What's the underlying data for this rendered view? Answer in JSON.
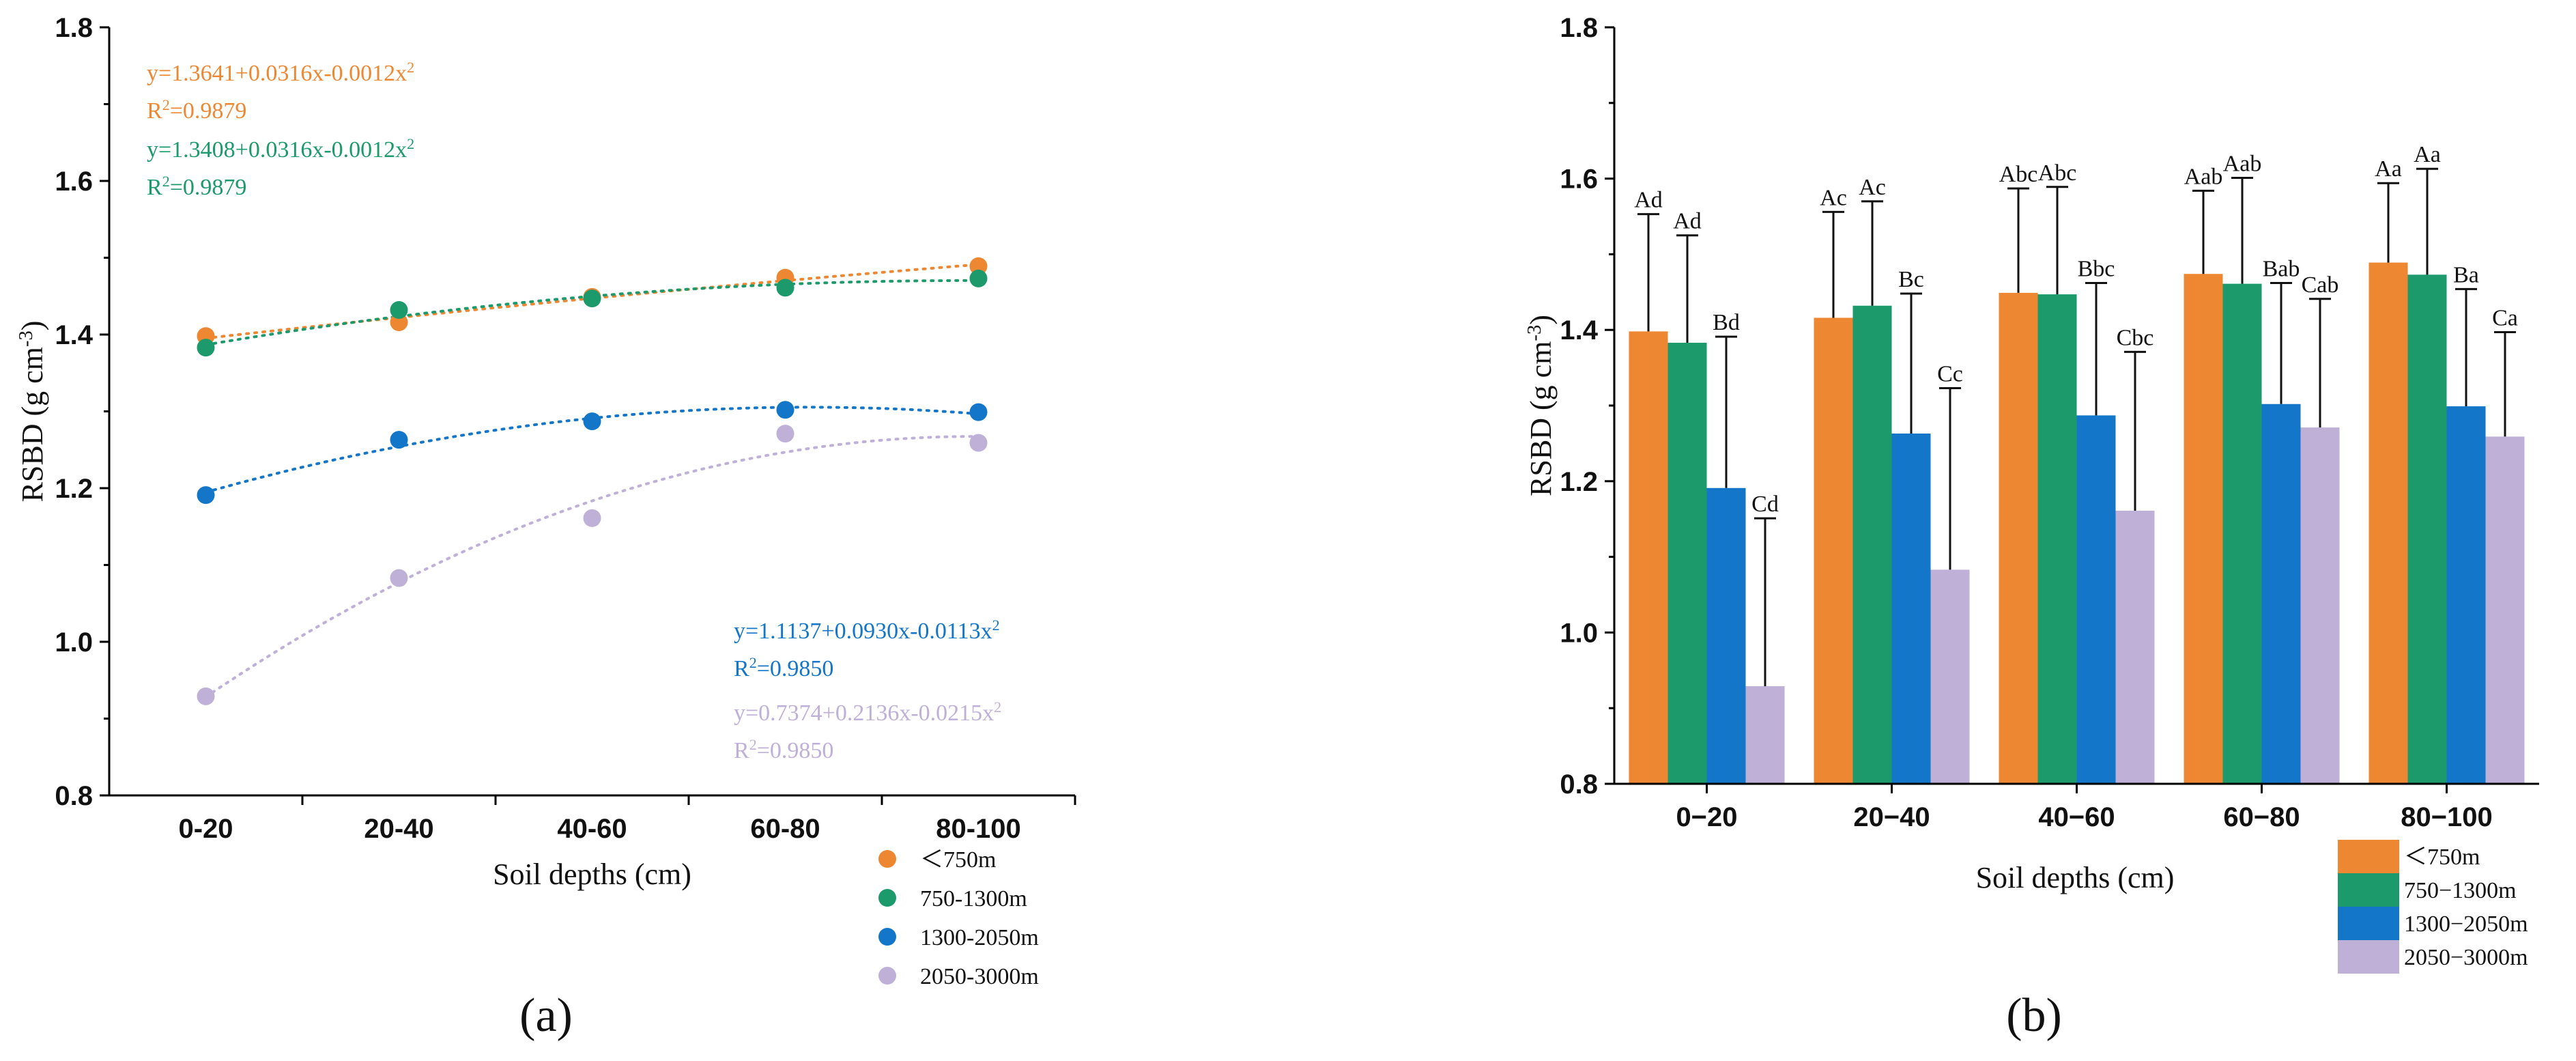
{
  "chart_data": [
    {
      "type": "scatter",
      "panel_label": "(a)",
      "title": "",
      "xlabel": "Soil depths (cm)",
      "ylabel": "RSBD (g cm⁻³)",
      "categories": [
        "0-20",
        "20-40",
        "40-60",
        "60-80",
        "80-100"
      ],
      "ylim": [
        0.8,
        1.8
      ],
      "yticks": [
        "0.8",
        "1.0",
        "1.2",
        "1.4",
        "1.6",
        "1.8"
      ],
      "fit": "quadratic (dotted)",
      "series": [
        {
          "name": "＜750m",
          "color": "#EE8732",
          "values": [
            1.398,
            1.416,
            1.449,
            1.474,
            1.489
          ],
          "equation": "y=1.3641+0.0316x-0.0012x²",
          "r2": "R²=0.9879"
        },
        {
          "name": "750-1300m",
          "color": "#1C9A6C",
          "values": [
            1.383,
            1.432,
            1.447,
            1.461,
            1.473
          ],
          "equation": "y=1.3408+0.0316x-0.0012x²",
          "r2": "R²=0.9879"
        },
        {
          "name": "1300-2050m",
          "color": "#1476C8",
          "values": [
            1.191,
            1.263,
            1.287,
            1.302,
            1.299
          ],
          "equation": "y=1.1137+0.0930x-0.0113x²",
          "r2": "R²=0.9850"
        },
        {
          "name": "2050-3000m",
          "color": "#BFB0D8",
          "values": [
            0.929,
            1.083,
            1.161,
            1.271,
            1.259
          ],
          "equation": "y=0.7374+0.2136x-0.0215x²",
          "r2": "R²=0.9850"
        }
      ]
    },
    {
      "type": "bar",
      "panel_label": "(b)",
      "title": "",
      "xlabel": "Soil depths (cm)",
      "ylabel": "RSBD (g cm⁻³)",
      "categories": [
        "0−20",
        "20−40",
        "40−60",
        "60−80",
        "80−100"
      ],
      "ylim": [
        0.8,
        1.8
      ],
      "yticks": [
        "0.8",
        "1.0",
        "1.2",
        "1.4",
        "1.6",
        "1.8"
      ],
      "series": [
        {
          "name": "＜750m",
          "color": "#EE8732",
          "values": [
            1.398,
            1.416,
            1.449,
            1.474,
            1.489
          ],
          "errors": [
            0.155,
            0.14,
            0.138,
            0.11,
            0.105
          ],
          "letters": [
            "Ad",
            "Ac",
            "Abc",
            "Aab",
            "Aa"
          ]
        },
        {
          "name": "750−1300m",
          "color": "#1C9A6C",
          "values": [
            1.383,
            1.432,
            1.447,
            1.461,
            1.473
          ],
          "errors": [
            0.142,
            0.138,
            0.142,
            0.14,
            0.14
          ],
          "letters": [
            "Ad",
            "Ac",
            "Abc",
            "Aab",
            "Aa"
          ]
        },
        {
          "name": "1300−2050m",
          "color": "#1476C8",
          "values": [
            1.191,
            1.263,
            1.287,
            1.302,
            1.299
          ],
          "errors": [
            0.2,
            0.185,
            0.175,
            0.16,
            0.155
          ],
          "letters": [
            "Bd",
            "Bc",
            "Bbc",
            "Bab",
            "Ba"
          ]
        },
        {
          "name": "2050−3000m",
          "color": "#BFB0D8",
          "values": [
            0.929,
            1.083,
            1.161,
            1.271,
            1.259
          ],
          "errors": [
            0.222,
            0.24,
            0.21,
            0.17,
            0.138
          ],
          "letters": [
            "Cd",
            "Cc",
            "Cbc",
            "Cab",
            "Ca"
          ]
        }
      ]
    }
  ]
}
